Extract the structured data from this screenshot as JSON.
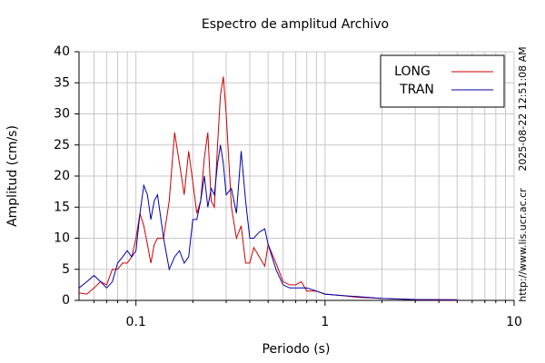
{
  "chart_data": {
    "type": "line",
    "title": "Espectro de amplitud Archivo",
    "x_label": "Periodo (s)",
    "y_label": "Amplitud (cm/s)",
    "timestamp": "2025-08-22 12:51:08 AM",
    "source": "http://www.lis.ucr.ac.cr",
    "x_scale": "log",
    "grid": true,
    "legend_position": "upper right",
    "xlim": [
      0.05,
      10
    ],
    "xticks": [
      0.1,
      1,
      10
    ],
    "xminorticks": [
      0.06,
      0.07,
      0.08,
      0.09,
      0.2,
      0.3,
      0.4,
      0.5,
      0.6,
      0.7,
      0.8,
      0.9,
      2,
      3,
      4,
      5,
      6,
      7,
      8,
      9
    ],
    "ylim": [
      0,
      40
    ],
    "yticks": [
      0,
      5,
      10,
      15,
      20,
      25,
      30,
      35,
      40
    ],
    "x": [
      0.05,
      0.055,
      0.06,
      0.065,
      0.07,
      0.075,
      0.08,
      0.085,
      0.09,
      0.095,
      0.1,
      0.105,
      0.11,
      0.115,
      0.12,
      0.125,
      0.13,
      0.14,
      0.15,
      0.16,
      0.17,
      0.18,
      0.19,
      0.2,
      0.21,
      0.22,
      0.23,
      0.24,
      0.25,
      0.26,
      0.27,
      0.28,
      0.29,
      0.3,
      0.32,
      0.34,
      0.36,
      0.38,
      0.4,
      0.42,
      0.45,
      0.48,
      0.5,
      0.55,
      0.6,
      0.65,
      0.7,
      0.75,
      0.8,
      0.9,
      1,
      1.2,
      1.5,
      2,
      3,
      5
    ],
    "series": [
      {
        "name": "LONG",
        "color": "#cc0000",
        "values": [
          1.2,
          1,
          2,
          3,
          2.5,
          5,
          5,
          6,
          6,
          7,
          10,
          14,
          12,
          9,
          6,
          9,
          10,
          10,
          16,
          27,
          22,
          17,
          24,
          19,
          14,
          16,
          23,
          27,
          16,
          15,
          25,
          33,
          36,
          30,
          15,
          10,
          12,
          6,
          6,
          8.5,
          7,
          5.5,
          9,
          6,
          3,
          2.5,
          2.5,
          3,
          1.5,
          1.5,
          1,
          0.8,
          0.5,
          0.3,
          0.1,
          0.05
        ]
      },
      {
        "name": "TRAN",
        "color": "#0000aa",
        "values": [
          2,
          3,
          4,
          3,
          2,
          3,
          6,
          7,
          8,
          7,
          8,
          14,
          18.5,
          17,
          13,
          16,
          17,
          10,
          5,
          7,
          8,
          6,
          7,
          13,
          13,
          16,
          20,
          15,
          18,
          17,
          22,
          25,
          22,
          17,
          18,
          14,
          24,
          16,
          10,
          10,
          11,
          11.5,
          9,
          5,
          2.5,
          2,
          2,
          2,
          2,
          1.5,
          1,
          0.8,
          0.6,
          0.3,
          0.15,
          0.1
        ]
      }
    ]
  }
}
